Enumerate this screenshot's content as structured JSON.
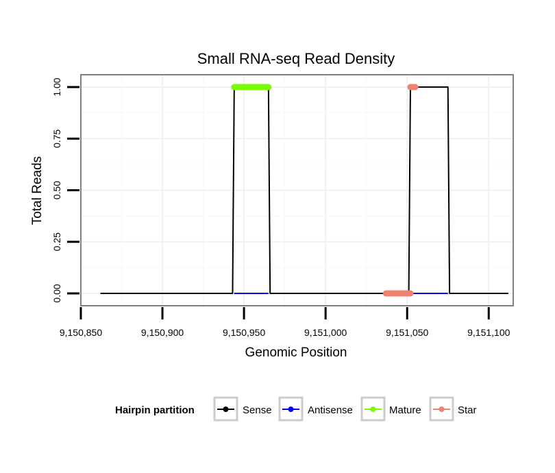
{
  "chart_data": {
    "type": "line",
    "title": "Small RNA-seq Read Density",
    "xlabel": "Genomic Position",
    "ylabel": "Total Reads",
    "xlim": [
      9150850,
      9151115
    ],
    "ylim": [
      -0.06,
      1.06
    ],
    "x_ticks": [
      9150850,
      9150900,
      9150950,
      9151000,
      9151050,
      9151100
    ],
    "x_tick_labels": [
      "9,150,850",
      "9,150,900",
      "9,150,950",
      "9,151,000",
      "9,151,050",
      "9,151,100"
    ],
    "y_ticks": [
      0,
      0.25,
      0.5,
      0.75,
      1.0
    ],
    "y_tick_labels": [
      "0.00",
      "0.25",
      "0.50",
      "0.75",
      "1.00"
    ],
    "grid": true,
    "legend": {
      "title": "Hairpin partition",
      "position": "bottom",
      "entries": [
        {
          "label": "Sense",
          "color": "#000000"
        },
        {
          "label": "Antisense",
          "color": "#0000ff"
        },
        {
          "label": "Mature",
          "color": "#7cfc00"
        },
        {
          "label": "Star",
          "color": "#f08070"
        }
      ]
    },
    "series": [
      {
        "name": "Sense",
        "color": "#000000",
        "x": [
          9150862,
          9150943,
          9150944,
          9150965,
          9150966,
          9151051,
          9151052,
          9151075,
          9151076,
          9151112
        ],
        "y": [
          0,
          0,
          1,
          1,
          0,
          0,
          1,
          1,
          0,
          0
        ]
      },
      {
        "name": "Antisense",
        "color": "#0000ff",
        "x": [
          9150944,
          9150965,
          9151052,
          9151075
        ],
        "y": [
          0,
          0,
          0,
          0
        ]
      },
      {
        "name": "Mature",
        "color": "#7cfc00",
        "x": [
          9150944,
          9150965
        ],
        "y": [
          1,
          1
        ]
      },
      {
        "name": "Star",
        "color": "#f08070",
        "x": [
          9151037,
          9151052
        ],
        "y": [
          0,
          0
        ],
        "x2": [
          9151052,
          9151055
        ],
        "y2": [
          1,
          1
        ]
      }
    ]
  }
}
